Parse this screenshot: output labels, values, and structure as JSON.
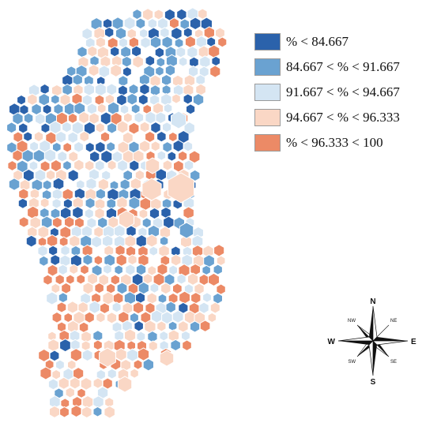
{
  "colors": {
    "class_1": "#2b62ab",
    "class_2": "#6aa2d1",
    "class_3": "#d4e5f3",
    "class_4": "#fad7c5",
    "class_5": "#ec8a66",
    "outline": "#ffffff"
  },
  "legend": {
    "items": [
      {
        "label": "% < 84.667",
        "color": "#2b62ab"
      },
      {
        "label": "84.667 < % < 91.667",
        "color": "#6aa2d1"
      },
      {
        "label": "91.667 < % < 94.667",
        "color": "#d4e5f3"
      },
      {
        "label": "94.667 < % < 96.333",
        "color": "#fad7c5"
      },
      {
        "label": "% < 96.333 < 100",
        "color": "#ec8a66"
      }
    ]
  },
  "compass": {
    "n": "N",
    "s": "S",
    "e": "E",
    "w": "W",
    "ne": "NE",
    "nw": "NW",
    "se": "SE",
    "sw": "SW"
  }
}
